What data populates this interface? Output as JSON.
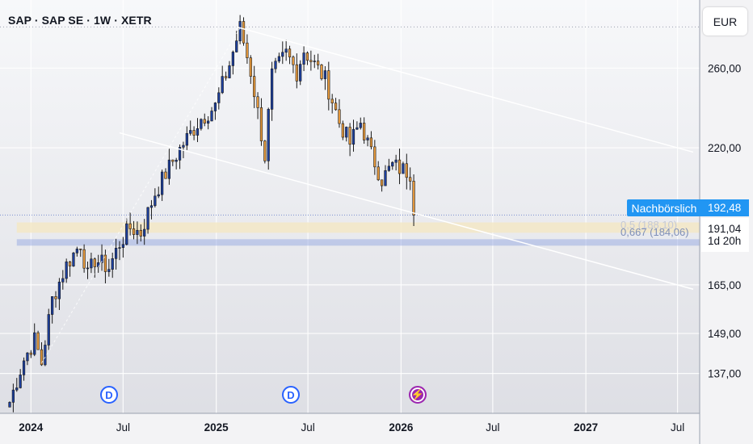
{
  "header": {
    "title": "SAP · SAP SE · 1W · XETR"
  },
  "currency_button": {
    "label": "EUR"
  },
  "price_labels": {
    "after_hours_label": "Nachbörslich",
    "after_hours_price": "192,48",
    "last_price": "191,04",
    "countdown": "1d 20h",
    "fib_level_text": "0,667 (184,06)",
    "fib_level_text_upper": "0,5 (188,10)"
  },
  "events": [
    {
      "symbol": "D",
      "kind": "dividend",
      "date": "2024-05-24"
    },
    {
      "symbol": "D",
      "kind": "dividend",
      "date": "2025-05-16"
    },
    {
      "symbol": "⚡",
      "kind": "earnings",
      "date": "2026-01-29"
    }
  ],
  "colors": {
    "up_candle": "#1c3f9e",
    "down_candle": "#e89a3c",
    "channel_line": "#ffffff",
    "fib_band": "#f3e7c5",
    "fib_line_blue": "#8fa2e0",
    "accent": "#2196f3"
  },
  "chart_data": {
    "type": "candlestick",
    "title": "SAP · SAP SE · 1W · XETR",
    "y_scale": "log",
    "y_axis_ticks": [
      "260,00",
      "220,00",
      "192,48",
      "191,04",
      "165,00",
      "149,00",
      "137,00"
    ],
    "y_axis_tick_values": [
      260,
      220,
      165,
      149,
      137
    ],
    "x_axis_ticks": [
      "2024",
      "Jul",
      "2025",
      "Jul",
      "2026",
      "Jul",
      "2027",
      "Jul"
    ],
    "x_axis_tick_dates": [
      "2024-01-01",
      "2024-07-01",
      "2025-01-01",
      "2025-07-01",
      "2026-01-01",
      "2026-07-01",
      "2027-01-01",
      "2027-07-01"
    ],
    "x_range": [
      "2023-11-20",
      "2027-08-01"
    ],
    "y_range": [
      126,
      290
    ],
    "last_price": 191.04,
    "after_hours_price": 192.48,
    "high": 283.5,
    "series": [
      {
        "name": "",
        "anchors": [
          [
            "2023-11-20",
            129
          ],
          [
            "2023-12-18",
            141
          ],
          [
            "2024-01-08",
            147
          ],
          [
            "2024-01-22",
            140
          ],
          [
            "2024-02-12",
            160
          ],
          [
            "2024-03-11",
            172
          ],
          [
            "2024-04-08",
            180
          ],
          [
            "2024-04-22",
            168
          ],
          [
            "2024-05-06",
            174
          ],
          [
            "2024-06-03",
            171
          ],
          [
            "2024-06-24",
            180
          ],
          [
            "2024-07-15",
            186
          ],
          [
            "2024-08-05",
            184
          ],
          [
            "2024-09-02",
            200
          ],
          [
            "2024-10-07",
            214
          ],
          [
            "2024-10-28",
            222
          ],
          [
            "2024-12-02",
            234
          ],
          [
            "2024-12-30",
            240
          ],
          [
            "2025-01-27",
            262
          ],
          [
            "2025-02-17",
            283
          ],
          [
            "2025-03-10",
            258
          ],
          [
            "2025-04-07",
            216
          ],
          [
            "2025-04-21",
            256
          ],
          [
            "2025-05-19",
            268
          ],
          [
            "2025-06-09",
            258
          ],
          [
            "2025-06-23",
            270
          ],
          [
            "2025-07-14",
            262
          ],
          [
            "2025-08-04",
            254
          ],
          [
            "2025-09-01",
            232
          ],
          [
            "2025-09-22",
            222
          ],
          [
            "2025-10-13",
            232
          ],
          [
            "2025-11-03",
            217
          ],
          [
            "2025-11-24",
            206
          ],
          [
            "2025-12-15",
            212
          ],
          [
            "2026-01-05",
            210
          ],
          [
            "2026-01-19",
            209
          ],
          [
            "2026-01-26",
            191.04
          ]
        ]
      }
    ],
    "trendlines": [
      {
        "from": [
          "2025-02-10",
          283.5
        ],
        "to": [
          "2027-08-01",
          218
        ]
      },
      {
        "from": [
          "2024-06-24",
          227
        ],
        "to": [
          "2027-08-01",
          163.5
        ]
      }
    ],
    "fib_levels": [
      {
        "label": "0,5 (188,10)",
        "value": 188.1
      },
      {
        "label": "0,667 (184,06)",
        "value": 184.06
      }
    ]
  }
}
